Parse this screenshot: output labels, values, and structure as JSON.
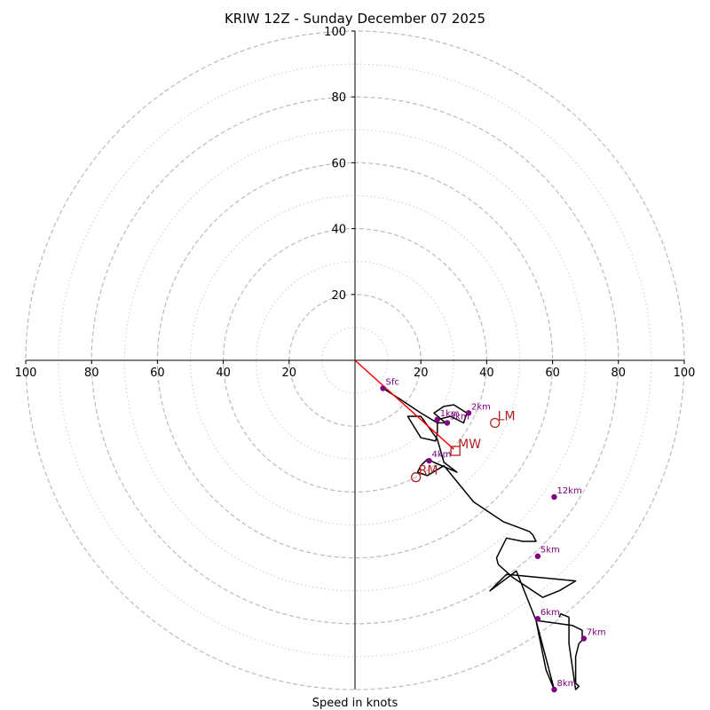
{
  "chart_data": {
    "type": "hodograph",
    "title": "KRIW 12Z - Sunday December 07 2025",
    "xlabel": "Speed in knots",
    "ylabel": "",
    "units": "knots",
    "xlim": [
      -100,
      100
    ],
    "ylim": [
      -100,
      100
    ],
    "major_rings": [
      20,
      40,
      60,
      80,
      100
    ],
    "minor_rings": [
      10,
      30,
      50,
      70,
      90
    ],
    "x_tick_labels": [
      "100",
      "80",
      "60",
      "40",
      "20",
      "20",
      "40",
      "60",
      "80",
      "100"
    ],
    "y_tick_labels": [
      "20",
      "40",
      "60",
      "80",
      "100"
    ],
    "hodograph_trace": [
      [
        8.5,
        -8.5
      ],
      [
        14,
        -12
      ],
      [
        20,
        -16
      ],
      [
        25,
        -19
      ],
      [
        27.5,
        -19
      ],
      [
        24,
        -16
      ],
      [
        27,
        -14
      ],
      [
        30,
        -13.5
      ],
      [
        34,
        -16
      ],
      [
        33,
        -19
      ],
      [
        29,
        -17
      ],
      [
        25,
        -18
      ],
      [
        25,
        -22
      ],
      [
        24.5,
        -24.5
      ],
      [
        20,
        -23.5
      ],
      [
        16,
        -17
      ],
      [
        20,
        -17
      ],
      [
        25,
        -24
      ],
      [
        27,
        -31
      ],
      [
        31,
        -34
      ],
      [
        24,
        -31
      ],
      [
        22,
        -30
      ],
      [
        20,
        -32
      ],
      [
        19,
        -34
      ],
      [
        22,
        -35
      ],
      [
        27,
        -32
      ],
      [
        36,
        -43
      ],
      [
        45,
        -49
      ],
      [
        53,
        -52
      ],
      [
        54,
        -53
      ],
      [
        55,
        -55
      ],
      [
        51,
        -55
      ],
      [
        46,
        -54
      ],
      [
        43,
        -60
      ],
      [
        43.5,
        -62
      ],
      [
        48,
        -66
      ],
      [
        57,
        -72
      ],
      [
        62,
        -70
      ],
      [
        67,
        -67
      ],
      [
        46,
        -65
      ],
      [
        41,
        -70
      ],
      [
        49,
        -64
      ],
      [
        55,
        -79
      ],
      [
        58,
        -94
      ],
      [
        60.5,
        -100
      ],
      [
        55,
        -79
      ],
      [
        66,
        -80.5
      ],
      [
        69,
        -82
      ],
      [
        69,
        -85
      ],
      [
        68,
        -86
      ],
      [
        67,
        -90
      ],
      [
        67,
        -98
      ],
      [
        68,
        -99
      ],
      [
        67,
        -100
      ],
      [
        65,
        -86
      ],
      [
        65,
        -78
      ],
      [
        62.5,
        -77
      ],
      [
        62,
        -78
      ]
    ],
    "shear_vector": {
      "from": [
        0,
        0
      ],
      "to": [
        30,
        -27
      ]
    },
    "height_markers": [
      {
        "label": "Sfc",
        "u": 8.5,
        "v": -8.5
      },
      {
        "label": "1km",
        "u": 25,
        "v": -18
      },
      {
        "label": "3km",
        "u": 28,
        "v": -19
      },
      {
        "label": "2km",
        "u": 34.5,
        "v": -16
      },
      {
        "label": "4km",
        "u": 22.5,
        "v": -30.5
      },
      {
        "label": "12km",
        "u": 60.5,
        "v": -41.5
      },
      {
        "label": "5km",
        "u": 55.5,
        "v": -59.5
      },
      {
        "label": "6km",
        "u": 55.5,
        "v": -78.5
      },
      {
        "label": "7km",
        "u": 69.5,
        "v": -84.5
      },
      {
        "label": "8km",
        "u": 60.5,
        "v": -100
      }
    ],
    "storm_motions": [
      {
        "label": "LM",
        "u": 42.5,
        "v": -19,
        "marker": "circle"
      },
      {
        "label": "MW",
        "u": 30.5,
        "v": -27.5,
        "marker": "square"
      },
      {
        "label": "RM",
        "u": 18.5,
        "v": -35.5,
        "marker": "circle"
      }
    ],
    "colors": {
      "trace": "#000000",
      "shear": "#ff0000",
      "markers": "#800080",
      "motion": "#b22222",
      "ring": "#bbbbbb"
    }
  }
}
